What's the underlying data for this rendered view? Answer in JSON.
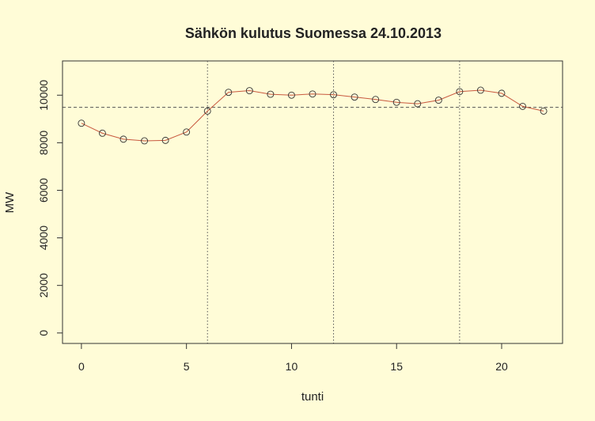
{
  "chart_data": {
    "type": "line",
    "title": "Sähkön kulutus Suomessa 24.10.2013",
    "xlabel": "tunti",
    "ylabel": "MW",
    "x": [
      0,
      1,
      2,
      3,
      4,
      5,
      6,
      7,
      8,
      9,
      10,
      11,
      12,
      13,
      14,
      15,
      16,
      17,
      18,
      19,
      20,
      21,
      22
    ],
    "series": [
      {
        "values": [
          8820,
          8400,
          8150,
          8080,
          8100,
          8450,
          9330,
          10120,
          10190,
          10040,
          10000,
          10050,
          10020,
          9920,
          9820,
          9700,
          9640,
          9790,
          10150,
          10210,
          10080,
          9530,
          9330
        ]
      }
    ],
    "xlim": [
      -0.9,
      22.9
    ],
    "ylim": [
      -440,
      11440
    ],
    "xticks": [
      0,
      5,
      10,
      15,
      20
    ],
    "yticks": [
      0,
      2000,
      4000,
      6000,
      8000,
      10000
    ],
    "hline": 9490,
    "vlines": [
      6,
      12,
      18
    ],
    "grid": false,
    "legend": "none",
    "colors": {
      "background": "#fffcd7",
      "line": "#c8593f",
      "marker": "#333333",
      "axis": "#333333",
      "reference": "#555555"
    }
  }
}
